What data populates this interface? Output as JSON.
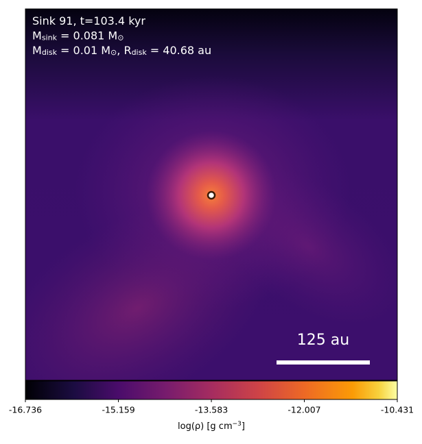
{
  "chart_data": {
    "type": "image",
    "annotations": [
      [
        "Sink 91, t=103.4 kyr"
      ],
      [
        "M",
        "sink",
        " = 0.081 M",
        "⊙"
      ],
      [
        "M",
        "disk",
        " = 0.01 M",
        "⊙",
        ", R",
        "disk",
        " = 40.68 au"
      ]
    ],
    "scale_bar": {
      "label": "125 au"
    },
    "colorbar": {
      "xlim": [
        -16.736,
        -10.431
      ],
      "xticks": [
        -16.736,
        -15.159,
        -13.583,
        -12.007,
        -10.431
      ],
      "xlabel": [
        "log(ρ) [g cm",
        "−3",
        "]"
      ]
    }
  }
}
